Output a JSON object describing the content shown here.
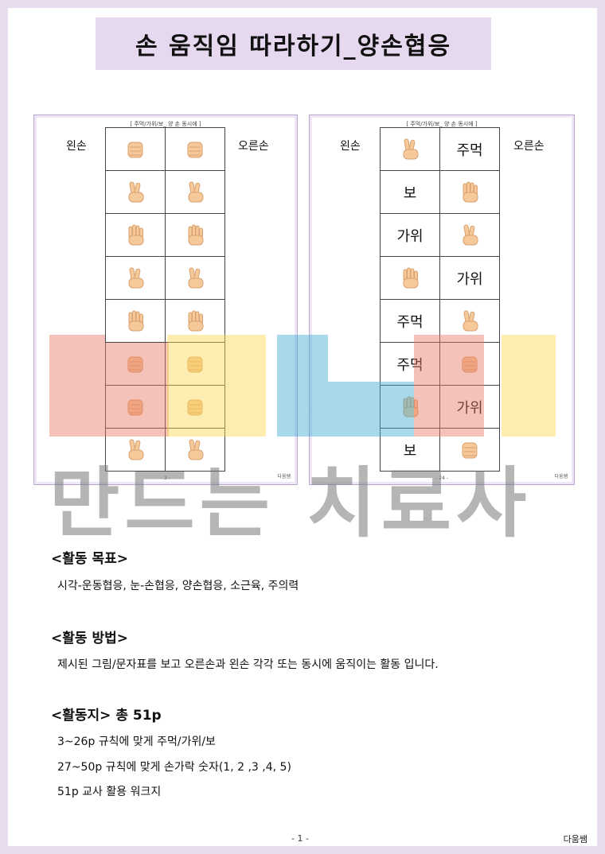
{
  "title": "손 움직임 따라하기_양손협응",
  "left_sheet": {
    "caption": "[ 주먹/가위/보_ 양 손 동시에 ]",
    "left_label": "왼손",
    "right_label": "오른손",
    "rows": [
      [
        "fist-icon",
        "fist-icon"
      ],
      [
        "scissors-icon",
        "scissors-icon"
      ],
      [
        "paper-icon",
        "paper-icon"
      ],
      [
        "scissors-icon",
        "scissors-icon"
      ],
      [
        "paper-icon",
        "paper-icon"
      ],
      [
        "fist-icon",
        "fist-icon"
      ],
      [
        "fist-icon",
        "fist-icon"
      ],
      [
        "scissors-icon",
        "scissors-icon"
      ]
    ],
    "page": "- 3 -",
    "author": "다움쌤"
  },
  "right_sheet": {
    "caption": "[ 주먹/가위/보_ 양 손 동시에 ]",
    "left_label": "왼손",
    "right_label": "오른손",
    "rows": [
      [
        {
          "icon": "scissors-icon"
        },
        {
          "text": "주먹"
        }
      ],
      [
        {
          "text": "보"
        },
        {
          "icon": "paper-icon"
        }
      ],
      [
        {
          "text": "가위"
        },
        {
          "icon": "scissors-icon"
        }
      ],
      [
        {
          "icon": "paper-icon"
        },
        {
          "text": "가위"
        }
      ],
      [
        {
          "text": "주먹"
        },
        {
          "icon": "scissors-icon"
        }
      ],
      [
        {
          "text": "주먹"
        },
        {
          "icon": "fist-icon"
        }
      ],
      [
        {
          "icon": "paper-icon"
        },
        {
          "text": "가위"
        }
      ],
      [
        {
          "text": "보"
        },
        {
          "icon": "fist-icon"
        }
      ]
    ],
    "page": "- 24 -",
    "author": "다움쌤"
  },
  "watermark": "만드는 치료사",
  "goal": {
    "heading": "<활동 목표>",
    "text": "시각-운동협응, 눈-손협응, 양손협응, 소근육, 주의력"
  },
  "method": {
    "heading": "<활동 방법>",
    "text": "제시된 그림/문자표를 보고 오른손과 왼손 각각 또는 동시에 움직이는 활동 입니다."
  },
  "sheets": {
    "heading": "<활동지> 총 51p",
    "lines": [
      "3~26p 규칙에 맞게 주먹/가위/보",
      "27~50p 규칙에 맞게 손가락 숫자(1, 2 ,3 ,4, 5)",
      "51p 교사 활용 워크지"
    ]
  },
  "footer": {
    "page": "- 1 -",
    "author": "다움쌤"
  },
  "colors": {
    "background": "#e8dcef",
    "title_box": "#e6d9ef",
    "skin": "#f6c99a"
  }
}
